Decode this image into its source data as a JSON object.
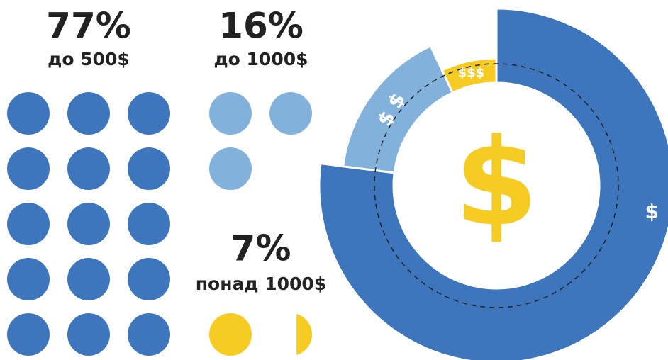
{
  "chart_data": {
    "type": "pie",
    "categories": [
      "до 500$",
      "до 1000$",
      "понад 1000$"
    ],
    "values": [
      77,
      16,
      7
    ],
    "value_labels": [
      "77%",
      "16%",
      "7%"
    ],
    "colors": [
      "#3d76bd",
      "#82b1db",
      "#f6cb22"
    ],
    "segment_symbols": [
      "$",
      "$ $",
      "$$$"
    ],
    "center_symbol": "$"
  }
}
